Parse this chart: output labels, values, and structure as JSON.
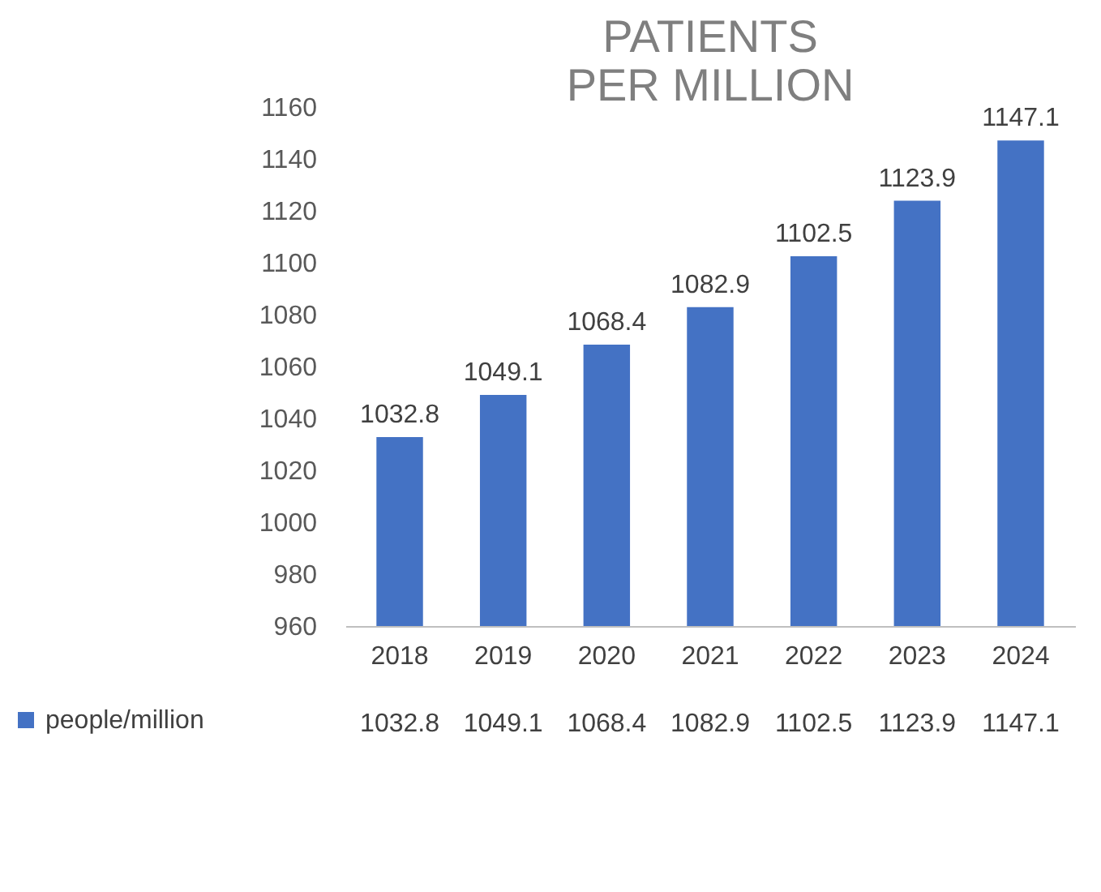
{
  "chart_data": {
    "type": "bar",
    "title": "PATIENTS PER MILLION",
    "categories": [
      "2018",
      "2019",
      "2020",
      "2021",
      "2022",
      "2023",
      "2024"
    ],
    "series": [
      {
        "name": "people/million",
        "color": "#4472c4",
        "values": [
          1032.8,
          1049.1,
          1068.4,
          1082.9,
          1102.5,
          1123.9,
          1147.1
        ]
      }
    ],
    "annotations": [
      "1032.8",
      "1049.1",
      "1068.4",
      "1082.9",
      "1102.5",
      "1123.9",
      "1147.1"
    ],
    "ylim": [
      960,
      1160
    ],
    "yticks": [
      960,
      980,
      1000,
      1020,
      1040,
      1060,
      1080,
      1100,
      1120,
      1140,
      1160
    ],
    "grid": false,
    "data_labels": true,
    "legend": "bottom"
  }
}
